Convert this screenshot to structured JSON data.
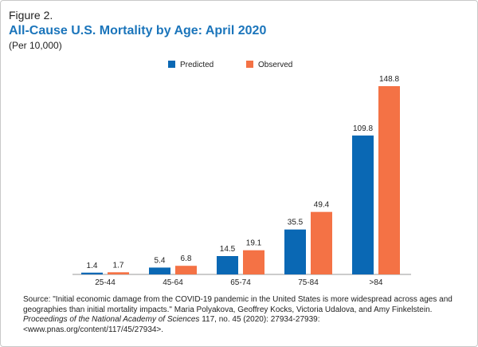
{
  "figure_label": "Figure 2.",
  "chart_data": {
    "type": "bar",
    "title": "All-Cause U.S. Mortality by Age: April 2020",
    "subtitle": "(Per 10,000)",
    "categories": [
      "25-44",
      "45-64",
      "65-74",
      "75-84",
      ">84"
    ],
    "series": [
      {
        "name": "Predicted",
        "color": "#0a68b4",
        "values": [
          1.4,
          5.4,
          14.5,
          35.5,
          109.8
        ]
      },
      {
        "name": "Observed",
        "color": "#f47245",
        "values": [
          1.7,
          6.8,
          19.1,
          49.4,
          148.8
        ]
      }
    ]
  },
  "source": {
    "prefix": "Source: \"Initial economic damage from the COVID-19 pandemic in the United States is more widespread across ages and geographies than initial mortality impacts.\" Maria Polyakova, Geoffrey Kocks, Victoria Udalova, and Amy Finkelstein. ",
    "journal": "Proceedings of the National Academy of Sciences",
    "suffix": " 117, no. 45 (2020): 27934-27939: <www.pnas.org/content/117/45/27934>."
  }
}
